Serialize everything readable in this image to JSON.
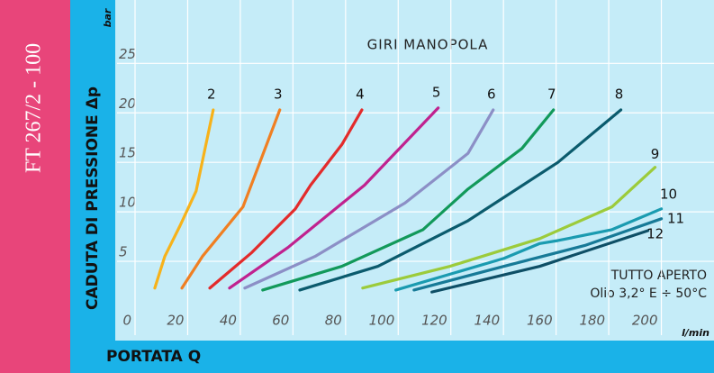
{
  "chart_data": {
    "type": "line",
    "doc_code": "FT 267/2 - 100",
    "ylabel": "CADUTA DI PRESSIONE Δp",
    "xlabel": "PORTATA Q",
    "yunit": "bar",
    "xunit": "l/min",
    "legend_title": "GIRI MANOPOLA",
    "annotations": [
      "TUTTO APERTO",
      "Olio 3,2° E ÷ 50°C"
    ],
    "xlim": [
      0,
      220
    ],
    "ylim": [
      0,
      31.4
    ],
    "xticks": [
      0,
      20,
      40,
      60,
      80,
      100,
      120,
      140,
      160,
      180,
      200
    ],
    "yticks": [
      5,
      10,
      15,
      20,
      25
    ],
    "grid": true,
    "series": [
      {
        "name": "2",
        "color": "#f7b21a",
        "x": [
          7.5,
          11.3,
          17.1,
          23.2,
          29.7
        ],
        "values": [
          2.3,
          5.5,
          8.6,
          12.1,
          20.3
        ]
      },
      {
        "name": "3",
        "color": "#f07f22",
        "x": [
          17.8,
          25.6,
          41.0,
          55.0
        ],
        "values": [
          2.3,
          5.5,
          10.5,
          20.3
        ]
      },
      {
        "name": "4",
        "color": "#e32b2b",
        "x": [
          28.4,
          44.4,
          60.9,
          66.7,
          78.6,
          86.2
        ],
        "values": [
          2.3,
          5.9,
          10.3,
          12.7,
          16.8,
          20.3
        ]
      },
      {
        "name": "5",
        "color": "#c0228f",
        "x": [
          35.9,
          58.1,
          87.2,
          115.2
        ],
        "values": [
          2.3,
          6.4,
          12.7,
          20.5
        ]
      },
      {
        "name": "6",
        "color": "#8c8fc6",
        "x": [
          41.7,
          68.4,
          102.6,
          126.5,
          136.1
        ],
        "values": [
          2.3,
          5.5,
          10.9,
          15.9,
          20.3
        ]
      },
      {
        "name": "7",
        "color": "#12995a",
        "x": [
          48.5,
          78.6,
          109.4,
          126.5,
          147,
          159
        ],
        "values": [
          2.1,
          4.5,
          8.2,
          12.3,
          16.4,
          20.3
        ]
      },
      {
        "name": "8",
        "color": "#0b5b6d",
        "x": [
          62.6,
          92.3,
          126.5,
          160.7,
          184.6
        ],
        "values": [
          2.1,
          4.5,
          9.1,
          15,
          20.3
        ]
      },
      {
        "name": "9",
        "color": "#9ccb3b",
        "x": [
          86.5,
          119.7,
          153.8,
          181.2,
          197.6
        ],
        "values": [
          2.3,
          4.5,
          7.3,
          10.5,
          14.5
        ]
      },
      {
        "name": "10",
        "color": "#1a9bb0",
        "x": [
          99.1,
          140.2,
          153.8,
          160.7,
          181.2,
          200
        ],
        "values": [
          2.1,
          5.3,
          6.8,
          7.1,
          8.2,
          10.3
        ]
      },
      {
        "name": "11",
        "color": "#177a97",
        "x": [
          106,
          140.2,
          170.9,
          200
        ],
        "values": [
          2.1,
          4.5,
          6.6,
          9.3
        ]
      },
      {
        "name": "12",
        "color": "#0e4f66",
        "x": [
          112.8,
          153.8,
          194.9
        ],
        "values": [
          1.9,
          4.5,
          8.1
        ]
      }
    ]
  }
}
